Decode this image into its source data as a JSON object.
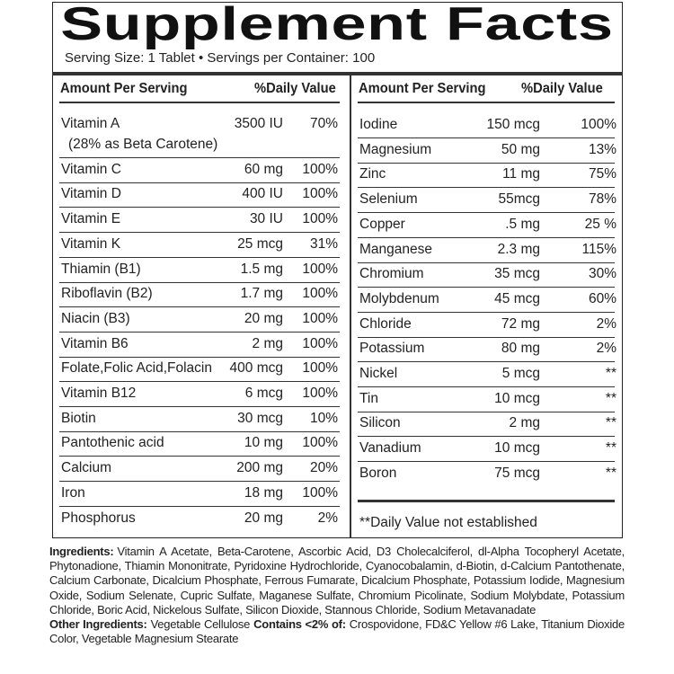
{
  "title": "Supplement Facts",
  "serving": "Serving Size: 1 Tablet • Servings per Container: 100",
  "left": {
    "headers": [
      "Amount Per Serving",
      "%Daily Value"
    ],
    "rows": [
      {
        "name": "Vitamin A",
        "note": "(28% as Beta Carotene)",
        "amount": "3500 IU",
        "dv": "70%"
      },
      {
        "name": "Vitamin C",
        "amount": "60 mg",
        "dv": "100%"
      },
      {
        "name": "Vitamin D",
        "amount": "400 IU",
        "dv": "100%"
      },
      {
        "name": "Vitamin E",
        "amount": "30 IU",
        "dv": "100%"
      },
      {
        "name": "Vitamin K",
        "amount": "25 mcg",
        "dv": "31%"
      },
      {
        "name": "Thiamin (B1)",
        "amount": "1.5 mg",
        "dv": "100%"
      },
      {
        "name": "Riboflavin (B2)",
        "amount": "1.7 mg",
        "dv": "100%"
      },
      {
        "name": "Niacin (B3)",
        "amount": "20 mg",
        "dv": "100%"
      },
      {
        "name": "Vitamin B6",
        "amount": "2 mg",
        "dv": "100%"
      },
      {
        "name": "Folate,Folic Acid,Folacin",
        "amount": "400 mcg",
        "dv": "100%"
      },
      {
        "name": "Vitamin B12",
        "amount": "6 mcg",
        "dv": "100%"
      },
      {
        "name": "Biotin",
        "amount": "30 mcg",
        "dv": "10%"
      },
      {
        "name": "Pantothenic acid",
        "amount": "10 mg",
        "dv": "100%"
      },
      {
        "name": "Calcium",
        "amount": "200 mg",
        "dv": "20%"
      },
      {
        "name": "Iron",
        "amount": "18 mg",
        "dv": "100%"
      },
      {
        "name": "Phosphorus",
        "amount": "20 mg",
        "dv": "2%"
      }
    ]
  },
  "right": {
    "headers": [
      "Amount Per Serving",
      "%Daily Value"
    ],
    "rows": [
      {
        "name": "Iodine",
        "amount": "150 mcg",
        "dv": "100%"
      },
      {
        "name": "Magnesium",
        "amount": "50 mg",
        "dv": "13%"
      },
      {
        "name": "Zinc",
        "amount": "11 mg",
        "dv": "75%"
      },
      {
        "name": "Selenium",
        "amount": "55mcg",
        "dv": "78%"
      },
      {
        "name": "Copper",
        "amount": ".5 mg",
        "dv": "25 %"
      },
      {
        "name": "Manganese",
        "amount": "2.3 mg",
        "dv": "115%"
      },
      {
        "name": "Chromium",
        "amount": "35 mcg",
        "dv": "30%"
      },
      {
        "name": "Molybdenum",
        "amount": "45 mcg",
        "dv": "60%"
      },
      {
        "name": "Chloride",
        "amount": "72 mg",
        "dv": "2%"
      },
      {
        "name": "Potassium",
        "amount": "80 mg",
        "dv": "2%"
      },
      {
        "name": "Nickel",
        "amount": "5 mcg",
        "dv": "**"
      },
      {
        "name": "Tin",
        "amount": "10 mcg",
        "dv": "**"
      },
      {
        "name": "Silicon",
        "amount": "2 mg",
        "dv": "**"
      },
      {
        "name": "Vanadium",
        "amount": "10 mcg",
        "dv": "**"
      },
      {
        "name": "Boron",
        "amount": "75 mcg",
        "dv": "**"
      }
    ],
    "footnote": "**Daily Value not established"
  },
  "ingredients": {
    "label": "Ingredients:",
    "text": "Vitamin A Acetate, Beta-Carotene, Ascorbic Acid, D3 Cholecalciferol, dl-Alpha Tocopheryl Acetate, Phytonadione, Thiamin Mononitrate, Pyridoxine Hydrochloride, Cyanocobalamin, d-Biotin, d-Calcium Pantothenate, Calcium Carbonate, Dicalcium Phosphate, Ferrous Fumarate, Dicalcium Phosphate, Potassium Iodide, Magnesium Oxide, Sodium Selenate, Cupric Sulfate, Maganese Sulfate, Chromium Picolinate, Sodium Molybdate, Potassium Chloride, Boric Acid, Nickelous Sulfate, Silicon Dioxide, Stannous Chloride, Sodium Metavanadate"
  },
  "other_ingredients": {
    "label": "Other Ingredients:",
    "text": "Vegetable Cellulose",
    "contains_label": "Contains <2% of:",
    "contains_text": "Crospovidone, FD&C Yellow #6 Lake, Titanium Dioxide Color, Vegetable Magnesium Stearate"
  }
}
